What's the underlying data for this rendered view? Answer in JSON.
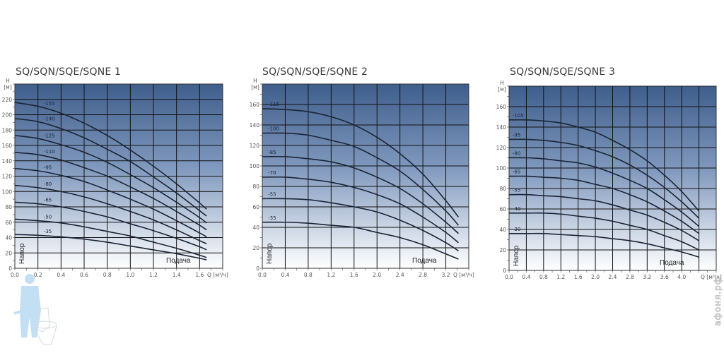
{
  "watermark": "афоня.рф",
  "colors": {
    "plot_top": "#41618f",
    "plot_bottom": "#ffffff",
    "grid": "#111111",
    "curve": "#1b2436"
  },
  "chart_data": [
    {
      "type": "line",
      "title": "SQ/SQN/SQE/SQNE 1",
      "ylabel": "H [м]",
      "xlabel": "Q [м³/ч]",
      "y_axis_name": "Напор",
      "x_axis_name": "Подача",
      "xlim": [
        0,
        1.8
      ],
      "ylim": [
        0,
        240
      ],
      "grid": true,
      "x_ticks": [
        "0.0",
        "0.2",
        "0.4",
        "0.6",
        "0.8",
        "1.0",
        "1.2",
        "1.4",
        "1.6"
      ],
      "y_ticks": [
        "0",
        "20",
        "40",
        "60",
        "80",
        "100",
        "120",
        "140",
        "160",
        "180",
        "200",
        "220"
      ],
      "x": [
        0,
        0.2,
        0.4,
        0.6,
        0.8,
        1.0,
        1.2,
        1.4,
        1.6,
        1.66
      ],
      "label_q": 0.25,
      "series": [
        {
          "name": "-155",
          "values": [
            216,
            211,
            202,
            189,
            173,
            154,
            133,
            110,
            85,
            77
          ]
        },
        {
          "name": "-140",
          "values": [
            195,
            191,
            182,
            170,
            155,
            139,
            119,
            98,
            75,
            68
          ]
        },
        {
          "name": "-125",
          "values": [
            173,
            169,
            161,
            151,
            138,
            122,
            105,
            86,
            66,
            59
          ]
        },
        {
          "name": "-110",
          "values": [
            151,
            148,
            141,
            131,
            120,
            106,
            91,
            74,
            56,
            50
          ]
        },
        {
          "name": "-95",
          "values": [
            130,
            127,
            121,
            113,
            102,
            90,
            77,
            62,
            46,
            41
          ]
        },
        {
          "name": "-80",
          "values": [
            108,
            105,
            100,
            93,
            84,
            74,
            63,
            50,
            36,
            32
          ]
        },
        {
          "name": "-65",
          "values": [
            86,
            84,
            80,
            74,
            67,
            58,
            49,
            39,
            28,
            24
          ]
        },
        {
          "name": "-50",
          "values": [
            64,
            62,
            59,
            54,
            48,
            42,
            34,
            26,
            17,
            14
          ]
        },
        {
          "name": "-35",
          "values": [
            44,
            43,
            41,
            38,
            34,
            29,
            24,
            19,
            13,
            11
          ]
        }
      ]
    },
    {
      "type": "line",
      "title": "SQ/SQN/SQE/SQNE 2",
      "ylabel": "H [м]",
      "xlabel": "Q [м³/ч]",
      "y_axis_name": "Напор",
      "x_axis_name": "Подача",
      "xlim": [
        0,
        3.6
      ],
      "ylim": [
        0,
        180
      ],
      "grid": true,
      "x_ticks": [
        "0.0",
        "0.4",
        "0.8",
        "1.2",
        "1.6",
        "2.0",
        "2.4",
        "2.8",
        "3.2"
      ],
      "y_ticks": [
        "0",
        "20",
        "40",
        "60",
        "80",
        "100",
        "120",
        "140",
        "160"
      ],
      "x": [
        0,
        0.4,
        0.8,
        1.2,
        1.6,
        2.0,
        2.4,
        2.8,
        3.2,
        3.42
      ],
      "label_q": 0.1,
      "series": [
        {
          "name": "-115",
          "values": [
            156,
            155,
            153,
            148,
            140,
            128,
            112,
            92,
            66,
            50
          ]
        },
        {
          "name": "-100",
          "values": [
            132,
            132,
            130,
            125,
            119,
            108,
            95,
            77,
            56,
            42
          ]
        },
        {
          "name": "-85",
          "values": [
            109,
            109,
            107,
            104,
            98,
            89,
            78,
            63,
            45,
            34
          ]
        },
        {
          "name": "-70",
          "values": [
            89,
            89,
            87,
            84,
            79,
            72,
            63,
            50,
            35,
            25
          ]
        },
        {
          "name": "-55",
          "values": [
            68,
            68,
            67,
            64,
            60,
            55,
            47,
            37,
            25,
            17
          ]
        },
        {
          "name": "-35",
          "values": [
            45,
            45,
            44,
            42,
            40,
            35,
            30,
            23,
            14,
            9
          ]
        }
      ]
    },
    {
      "type": "line",
      "title": "SQ/SQN/SQE/SQNE 3",
      "ylabel": "H [м]",
      "xlabel": "Q [м³/ч]",
      "y_axis_name": "Напор",
      "x_axis_name": "Подача",
      "xlim": [
        0,
        4.8
      ],
      "ylim": [
        0,
        180
      ],
      "grid": true,
      "x_ticks": [
        "0.0",
        "0.4",
        "0.8",
        "1.2",
        "1.6",
        "2.0",
        "2.4",
        "2.8",
        "3.2",
        "3.6",
        "4.0"
      ],
      "y_ticks": [
        "0",
        "20",
        "40",
        "60",
        "80",
        "100",
        "120",
        "140",
        "160"
      ],
      "x": [
        0,
        0.4,
        0.8,
        1.2,
        1.6,
        2.0,
        2.4,
        2.8,
        3.2,
        3.6,
        4.0,
        4.4
      ],
      "label_q": 0.08,
      "series": [
        {
          "name": "-105",
          "values": [
            147,
            147,
            146,
            144,
            140,
            135,
            127,
            118,
            107,
            93,
            77,
            58
          ]
        },
        {
          "name": "-95",
          "values": [
            128,
            128,
            127,
            125,
            122,
            117,
            111,
            103,
            93,
            81,
            67,
            51
          ]
        },
        {
          "name": "-80",
          "values": [
            110,
            110,
            109,
            107,
            105,
            101,
            95,
            88,
            80,
            69,
            57,
            43
          ]
        },
        {
          "name": "-65",
          "values": [
            92,
            92,
            91,
            90,
            88,
            84,
            80,
            74,
            67,
            58,
            48,
            36
          ]
        },
        {
          "name": "-55",
          "values": [
            74,
            74,
            73,
            72,
            70,
            68,
            64,
            59,
            54,
            47,
            39,
            29
          ]
        },
        {
          "name": "-40",
          "values": [
            56,
            56,
            56,
            55,
            53,
            51,
            48,
            44,
            40,
            34,
            28,
            20
          ]
        },
        {
          "name": "-30",
          "values": [
            36,
            36,
            36,
            35,
            34,
            33,
            31,
            29,
            26,
            22,
            18,
            13
          ]
        }
      ]
    }
  ]
}
